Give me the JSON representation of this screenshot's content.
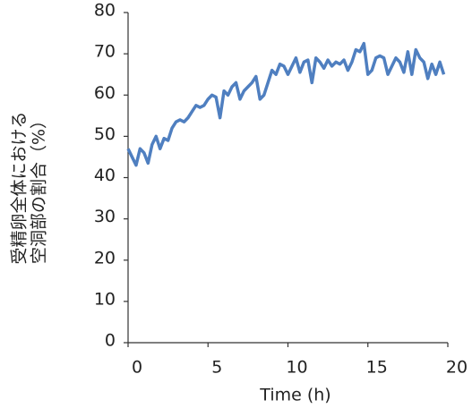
{
  "chart_data": {
    "type": "line",
    "y_label": [
      "受精卵全体における",
      "空洞部の割合（%）"
    ],
    "x_label": "Time (h)",
    "x": [
      0,
      0.25,
      0.5,
      0.75,
      1,
      1.25,
      1.5,
      1.75,
      2,
      2.25,
      2.5,
      2.75,
      3,
      3.25,
      3.5,
      3.75,
      4,
      4.25,
      4.5,
      4.75,
      5,
      5.25,
      5.5,
      5.75,
      6,
      6.25,
      6.5,
      6.75,
      7,
      7.25,
      7.5,
      7.75,
      8,
      8.25,
      8.5,
      8.75,
      9,
      9.25,
      9.5,
      9.75,
      10,
      10.25,
      10.5,
      10.75,
      11,
      11.25,
      11.5,
      11.75,
      12,
      12.25,
      12.5,
      12.75,
      13,
      13.25,
      13.5,
      13.75,
      14,
      14.25,
      14.5,
      14.75,
      15,
      15.25,
      15.5,
      15.75,
      16,
      16.25,
      16.5,
      16.75,
      17,
      17.25,
      17.5,
      17.75,
      18,
      18.25,
      18.5,
      18.75,
      19,
      19.25,
      19.5,
      19.75
    ],
    "series": [
      {
        "color": "#4f7fc0",
        "values": [
          47,
          45,
          43,
          47,
          46,
          43.5,
          48,
          50,
          47,
          49.5,
          49,
          52,
          53.5,
          54,
          53.5,
          54.5,
          56,
          57.5,
          57,
          57.5,
          59,
          60,
          59.5,
          54.5,
          61,
          60,
          62,
          63,
          59,
          61,
          62,
          63,
          64.5,
          59,
          60,
          63,
          66,
          65,
          67.5,
          67,
          65,
          67,
          69,
          65.5,
          68,
          68.5,
          63,
          69,
          68,
          66.5,
          68.5,
          67,
          68,
          67.5,
          68.5,
          66,
          68,
          71,
          70.5,
          72.5,
          65,
          66,
          69,
          69.5,
          69,
          65,
          67,
          69,
          68,
          65.5,
          70.5,
          65,
          71,
          69,
          68,
          64,
          67.5,
          65,
          68,
          65
        ]
      }
    ],
    "xlim": [
      0,
      20
    ],
    "xticks": [
      0,
      5,
      10,
      15,
      20
    ],
    "ylim": [
      0,
      80
    ],
    "yticks": [
      0,
      10,
      20,
      30,
      40,
      50,
      60,
      70,
      80
    ]
  }
}
